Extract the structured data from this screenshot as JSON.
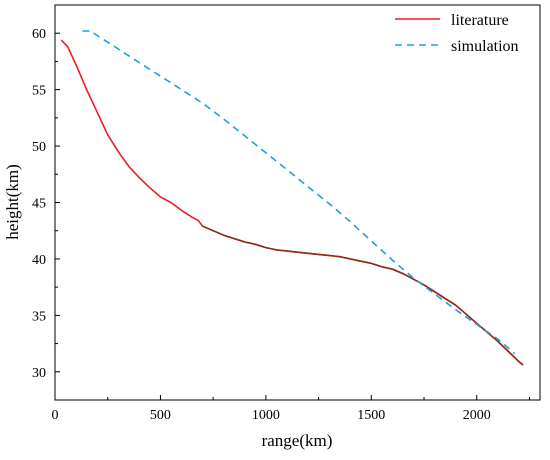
{
  "chart_data": {
    "type": "line",
    "xlabel": "range(km)",
    "ylabel": "height(km)",
    "xlim": [
      0,
      2300
    ],
    "ylim": [
      27.5,
      62.5
    ],
    "xticks": [
      0,
      500,
      1000,
      1500,
      2000
    ],
    "yticks": [
      30,
      35,
      40,
      45,
      50,
      55,
      60
    ],
    "grid": false,
    "legend_position": "top-right",
    "series": [
      {
        "name": "literature",
        "color": "#ee1c25",
        "style": "solid",
        "x": [
          30,
          60,
          100,
          150,
          200,
          250,
          300,
          350,
          400,
          450,
          500,
          550,
          600,
          650,
          680,
          700,
          750,
          800,
          850,
          900,
          950,
          1000,
          1050,
          1100,
          1150,
          1200,
          1250,
          1300,
          1350,
          1400,
          1450,
          1500,
          1550,
          1600,
          1650,
          1700,
          1750,
          1800,
          1850,
          1900,
          1950,
          2000,
          2050,
          2100,
          2150,
          2200,
          2220
        ],
        "y": [
          59.4,
          58.8,
          57.2,
          55.0,
          53.0,
          51.0,
          49.5,
          48.2,
          47.2,
          46.3,
          45.5,
          45.0,
          44.3,
          43.7,
          43.4,
          42.9,
          42.5,
          42.1,
          41.8,
          41.5,
          41.3,
          41.0,
          40.8,
          40.7,
          40.6,
          40.5,
          40.4,
          40.3,
          40.2,
          40.0,
          39.8,
          39.6,
          39.3,
          39.1,
          38.7,
          38.2,
          37.7,
          37.1,
          36.5,
          35.9,
          35.1,
          34.3,
          33.5,
          32.7,
          31.8,
          30.9,
          30.6
        ],
        "overlay_color": "#8b2e1e",
        "overlay_from_x": 690
      },
      {
        "name": "simulation",
        "color": "#1ea0dc",
        "style": "dashed",
        "x": [
          130,
          170,
          200,
          250,
          300,
          350,
          400,
          500,
          600,
          700,
          800,
          900,
          1000,
          1100,
          1200,
          1300,
          1400,
          1500,
          1600,
          1700,
          1800,
          1900,
          2000,
          2100,
          2150,
          2180
        ],
        "y": [
          60.2,
          60.2,
          59.8,
          59.2,
          58.6,
          58.0,
          57.4,
          56.2,
          55.0,
          53.8,
          52.4,
          50.9,
          49.4,
          47.9,
          46.4,
          44.9,
          43.3,
          41.6,
          39.9,
          38.3,
          36.9,
          35.5,
          34.2,
          32.9,
          32.1,
          31.6
        ]
      }
    ]
  }
}
